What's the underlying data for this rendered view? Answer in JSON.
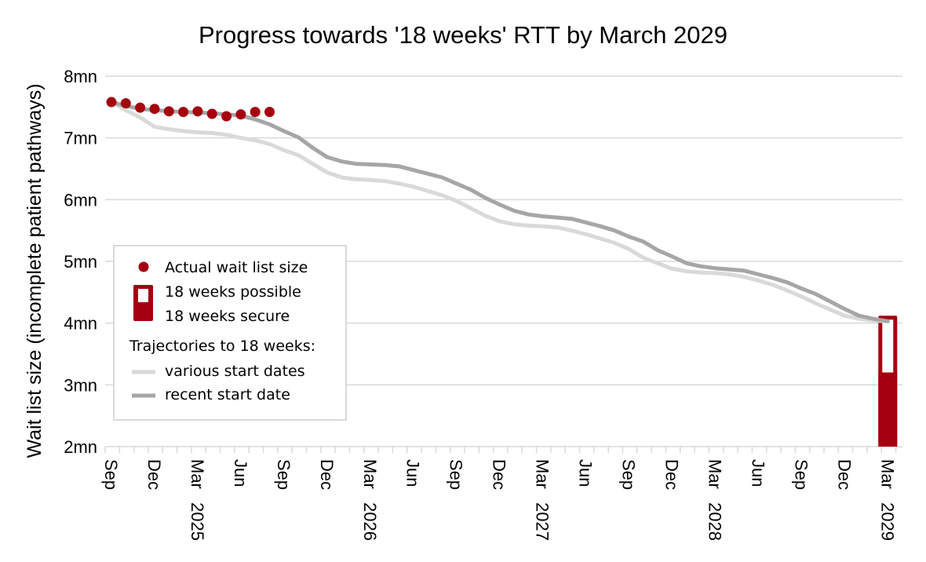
{
  "chart_data": {
    "type": "line",
    "title": "Progress towards '18 weeks' RTT by March 2029",
    "ylabel": "Wait list size (incomplete patient pathways)",
    "xlabel": "",
    "ylim": [
      2,
      8
    ],
    "yticks": [
      "2mn",
      "3mn",
      "4mn",
      "5mn",
      "6mn",
      "7mn",
      "8mn"
    ],
    "ytick_values": [
      2,
      3,
      4,
      5,
      6,
      7,
      8
    ],
    "grid": "horizontal",
    "x_start": "Sep 2024",
    "x_end": "Mar 2029",
    "xticks": [
      {
        "label": "Sep",
        "year": ""
      },
      {
        "label": "Dec",
        "year": ""
      },
      {
        "label": "Mar",
        "year": "2025"
      },
      {
        "label": "Jun",
        "year": ""
      },
      {
        "label": "Sep",
        "year": ""
      },
      {
        "label": "Dec",
        "year": ""
      },
      {
        "label": "Mar",
        "year": "2026"
      },
      {
        "label": "Jun",
        "year": ""
      },
      {
        "label": "Sep",
        "year": ""
      },
      {
        "label": "Dec",
        "year": ""
      },
      {
        "label": "Mar",
        "year": "2027"
      },
      {
        "label": "Jun",
        "year": ""
      },
      {
        "label": "Sep",
        "year": ""
      },
      {
        "label": "Dec",
        "year": ""
      },
      {
        "label": "Mar",
        "year": "2028"
      },
      {
        "label": "Jun",
        "year": ""
      },
      {
        "label": "Sep",
        "year": ""
      },
      {
        "label": "Dec",
        "year": ""
      },
      {
        "label": "Mar",
        "year": "2029"
      }
    ],
    "series": [
      {
        "name": "various start dates",
        "kind": "line",
        "color": "#d9d9d9",
        "values": [
          7.58,
          7.45,
          7.33,
          7.18,
          7.14,
          7.11,
          7.09,
          7.08,
          7.05,
          7.0,
          6.96,
          6.9,
          6.8,
          6.72,
          6.58,
          6.44,
          6.36,
          6.33,
          6.32,
          6.3,
          6.26,
          6.21,
          6.14,
          6.07,
          5.98,
          5.86,
          5.74,
          5.65,
          5.6,
          5.58,
          5.57,
          5.55,
          5.5,
          5.44,
          5.37,
          5.3,
          5.2,
          5.06,
          4.97,
          4.88,
          4.84,
          4.82,
          4.81,
          4.79,
          4.75,
          4.69,
          4.62,
          4.53,
          4.43,
          4.32,
          4.22,
          4.12,
          4.07,
          4.04,
          4.03
        ]
      },
      {
        "name": "recent start date",
        "kind": "line",
        "color": "#a6a6a6",
        "values": [
          7.58,
          7.52,
          7.47,
          7.45,
          7.43,
          7.42,
          7.41,
          7.4,
          7.38,
          7.36,
          7.3,
          7.22,
          7.11,
          7.01,
          6.84,
          6.69,
          6.62,
          6.58,
          6.57,
          6.56,
          6.54,
          6.48,
          6.42,
          6.36,
          6.26,
          6.16,
          6.03,
          5.92,
          5.82,
          5.76,
          5.73,
          5.71,
          5.69,
          5.63,
          5.57,
          5.5,
          5.4,
          5.32,
          5.18,
          5.08,
          4.97,
          4.92,
          4.89,
          4.87,
          4.85,
          4.79,
          4.73,
          4.66,
          4.56,
          4.47,
          4.35,
          4.23,
          4.12,
          4.07,
          4.03
        ]
      },
      {
        "name": "Actual wait list size",
        "kind": "scatter",
        "color": "#a50010",
        "values": [
          7.58,
          7.56,
          7.49,
          7.47,
          7.43,
          7.42,
          7.43,
          7.39,
          7.35,
          7.38,
          7.42,
          7.42
        ]
      }
    ],
    "bar": {
      "month": "Mar 2029",
      "possible_top": 4.12,
      "secure_top": 3.2,
      "color": "#a50010"
    },
    "legend": {
      "placement": "left-middle",
      "actual": "Actual wait list size",
      "possible": "18 weeks possible",
      "secure": "18 weeks secure",
      "heading": "Trajectories to 18 weeks:",
      "various": "various start dates",
      "recent": "recent start date"
    }
  }
}
